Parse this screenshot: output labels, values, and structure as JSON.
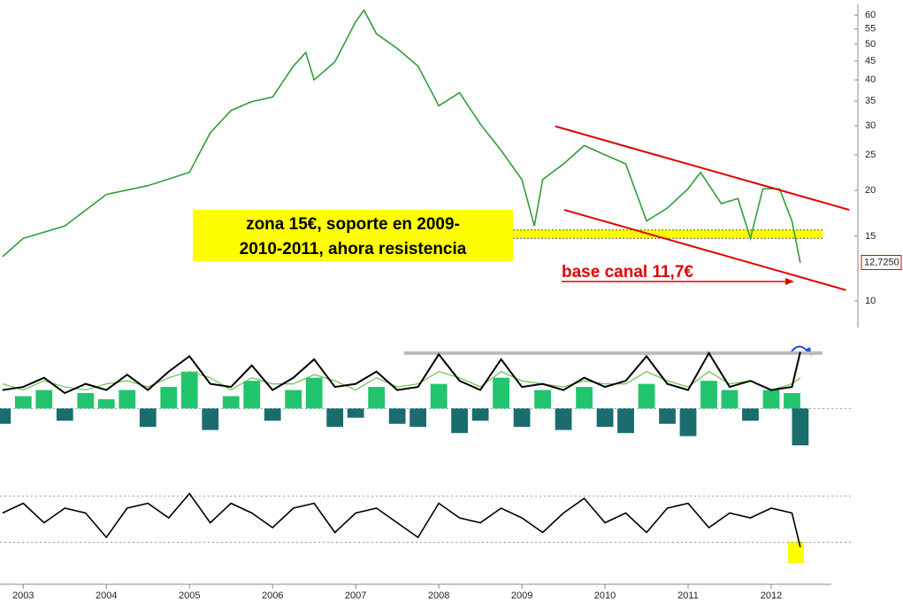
{
  "chart_data": [
    {
      "type": "line",
      "log_scale": true,
      "color": "#2e9e3a",
      "x": [
        2002.75,
        2003,
        2003.5,
        2004,
        2004.5,
        2005,
        2005.25,
        2005.5,
        2005.75,
        2006,
        2006.25,
        2006.4,
        2006.5,
        2006.75,
        2007,
        2007.1,
        2007.25,
        2007.5,
        2007.75,
        2008,
        2008.25,
        2008.5,
        2008.75,
        2009,
        2009.15,
        2009.25,
        2009.5,
        2009.75,
        2010,
        2010.25,
        2010.5,
        2010.75,
        2011,
        2011.15,
        2011.4,
        2011.6,
        2011.75,
        2011.9,
        2012.1,
        2012.25,
        2012.35
      ],
      "values": [
        13.2,
        14.8,
        16,
        19.5,
        20.6,
        22.4,
        28.7,
        33,
        34.9,
        35.9,
        43.6,
        47.5,
        40,
        44.8,
        57.6,
        61.9,
        53.4,
        48.7,
        43.6,
        34,
        36.9,
        30.3,
        25.7,
        21.4,
        16,
        21.4,
        23.6,
        26.5,
        25,
        23.6,
        16.5,
        17.9,
        20.2,
        22.4,
        18.4,
        19,
        14.8,
        20.2,
        20.2,
        16.5,
        12.7
      ],
      "xlim": [
        2002.72,
        2012.99
      ],
      "ylim": [
        8.46,
        66
      ],
      "xticks": [
        2003,
        2004,
        2005,
        2006,
        2007,
        2008,
        2009,
        2010,
        2011,
        2012
      ],
      "yticks": [
        10,
        15,
        20,
        25,
        30,
        35,
        40,
        45,
        50,
        55,
        60
      ],
      "last_price": {
        "value": 12.725,
        "label": "12,7250"
      },
      "trendlines": [
        {
          "x": [
            2009.4,
            2012.94
          ],
          "y": [
            29.9,
            17.7
          ],
          "color": "#e00000"
        },
        {
          "x": [
            2009.51,
            2012.9
          ],
          "y": [
            17.7,
            10.7
          ],
          "color": "#e00000"
        }
      ],
      "zone": [
        14.8,
        15.6
      ],
      "annotations": [
        {
          "text": "zona 15€, soporte en 2009-"
        },
        {
          "text": "2010-2011, ahora resistencia"
        },
        {
          "text": "base canal 11,7€"
        }
      ]
    },
    {
      "type": "combo",
      "xlim": [
        2002.72,
        2012.99
      ],
      "ylim": [
        -0.7,
        1.1
      ],
      "level": 0.9,
      "x": [
        2002.75,
        2003,
        2003.25,
        2003.5,
        2003.75,
        2004,
        2004.25,
        2004.5,
        2004.75,
        2005,
        2005.25,
        2005.5,
        2005.75,
        2006,
        2006.25,
        2006.5,
        2006.75,
        2007,
        2007.25,
        2007.5,
        2007.75,
        2008,
        2008.25,
        2008.5,
        2008.75,
        2009,
        2009.25,
        2009.5,
        2009.75,
        2010,
        2010.25,
        2010.5,
        2010.75,
        2011,
        2011.25,
        2011.5,
        2011.75,
        2012,
        2012.25,
        2012.35
      ],
      "series": [
        {
          "type": "bar",
          "up_color": "#22c46e",
          "down_color": "#1b6d6d",
          "values": [
            -0.25,
            0.2,
            0.3,
            -0.2,
            0.25,
            0.15,
            0.3,
            -0.3,
            0.35,
            0.6,
            -0.35,
            0.2,
            0.45,
            -0.2,
            0.3,
            0.5,
            -0.3,
            -0.15,
            0.35,
            -0.25,
            -0.3,
            0.4,
            -0.4,
            -0.2,
            0.5,
            -0.3,
            0.3,
            -0.35,
            0.35,
            -0.3,
            -0.4,
            0.4,
            -0.25,
            -0.45,
            0.45,
            0.3,
            -0.2,
            0.3,
            0.25,
            -0.6
          ]
        },
        {
          "type": "line",
          "color": "#6cc04a",
          "values": [
            0.4,
            0.3,
            0.45,
            0.35,
            0.3,
            0.4,
            0.45,
            0.35,
            0.5,
            0.6,
            0.5,
            0.3,
            0.5,
            0.4,
            0.4,
            0.55,
            0.45,
            0.3,
            0.5,
            0.35,
            0.4,
            0.6,
            0.5,
            0.35,
            0.6,
            0.45,
            0.4,
            0.35,
            0.45,
            0.4,
            0.4,
            0.6,
            0.45,
            0.35,
            0.6,
            0.4,
            0.45,
            0.3,
            0.4,
            0.5
          ]
        },
        {
          "type": "line",
          "color": "#000000",
          "values": [
            0.3,
            0.35,
            0.5,
            0.25,
            0.4,
            0.3,
            0.55,
            0.3,
            0.6,
            0.85,
            0.4,
            0.35,
            0.7,
            0.3,
            0.5,
            0.8,
            0.35,
            0.4,
            0.6,
            0.3,
            0.35,
            0.88,
            0.45,
            0.3,
            0.8,
            0.35,
            0.4,
            0.3,
            0.5,
            0.35,
            0.45,
            0.85,
            0.4,
            0.3,
            0.9,
            0.35,
            0.45,
            0.3,
            0.35,
            0.92
          ]
        }
      ]
    },
    {
      "type": "line",
      "xlim": [
        2002.72,
        2012.99
      ],
      "ylim": [
        -1,
        1
      ],
      "levels": [
        0.45,
        -0.5
      ],
      "color": "#000000",
      "x": [
        2002.75,
        2003,
        2003.25,
        2003.5,
        2003.75,
        2004,
        2004.25,
        2004.5,
        2004.75,
        2005,
        2005.25,
        2005.5,
        2005.75,
        2006,
        2006.25,
        2006.5,
        2006.75,
        2007,
        2007.25,
        2007.5,
        2007.75,
        2008,
        2008.25,
        2008.5,
        2008.75,
        2009,
        2009.25,
        2009.5,
        2009.75,
        2010,
        2010.25,
        2010.5,
        2010.75,
        2011,
        2011.25,
        2011.5,
        2011.75,
        2012,
        2012.25,
        2012.35
      ],
      "values": [
        0.1,
        0.3,
        -0.1,
        0.2,
        0.1,
        -0.4,
        0.2,
        0.3,
        0.0,
        0.5,
        -0.1,
        0.3,
        0.1,
        -0.2,
        0.2,
        0.3,
        -0.3,
        0.1,
        0.2,
        -0.1,
        -0.4,
        0.3,
        0.0,
        -0.1,
        0.2,
        0.0,
        -0.3,
        0.1,
        0.4,
        -0.1,
        0.1,
        -0.3,
        0.2,
        0.3,
        -0.2,
        0.1,
        0.0,
        0.2,
        0.1,
        -0.6
      ]
    }
  ]
}
